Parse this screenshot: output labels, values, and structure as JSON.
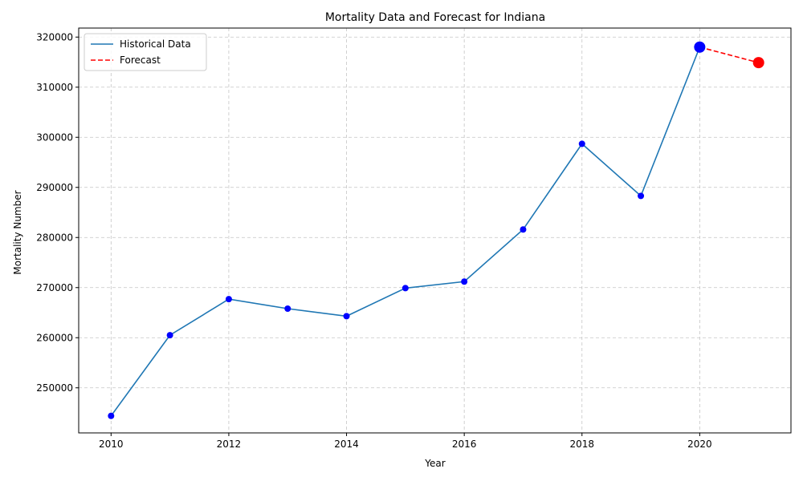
{
  "chart_data": {
    "type": "line",
    "title": "Mortality Data and Forecast for Indiana",
    "xlabel": "Year",
    "ylabel": "Mortality Number",
    "xlim": [
      2009.45,
      2021.55
    ],
    "ylim": [
      241000,
      321800
    ],
    "xticks": [
      2010,
      2012,
      2014,
      2016,
      2018,
      2020
    ],
    "yticks": [
      250000,
      260000,
      270000,
      280000,
      290000,
      300000,
      310000,
      320000
    ],
    "grid": true,
    "legend_position": "top-left",
    "series": [
      {
        "name": "Historical Data",
        "style": "solid",
        "color": "#1f77b4",
        "marker_color": "#0000ff",
        "x": [
          2010,
          2011,
          2012,
          2013,
          2014,
          2015,
          2016,
          2017,
          2018,
          2019,
          2020
        ],
        "y": [
          244400,
          260500,
          267700,
          265800,
          264300,
          269900,
          271200,
          281600,
          298700,
          288300,
          318000
        ]
      },
      {
        "name": "Forecast",
        "style": "dashed",
        "color": "#ff0000",
        "marker_color": "#ff0000",
        "x": [
          2020,
          2021
        ],
        "y": [
          318000,
          314900
        ]
      }
    ],
    "highlight_points": [
      {
        "x": 2020,
        "y": 318000,
        "color": "#0000ff"
      },
      {
        "x": 2021,
        "y": 314900,
        "color": "#ff0000"
      }
    ]
  }
}
